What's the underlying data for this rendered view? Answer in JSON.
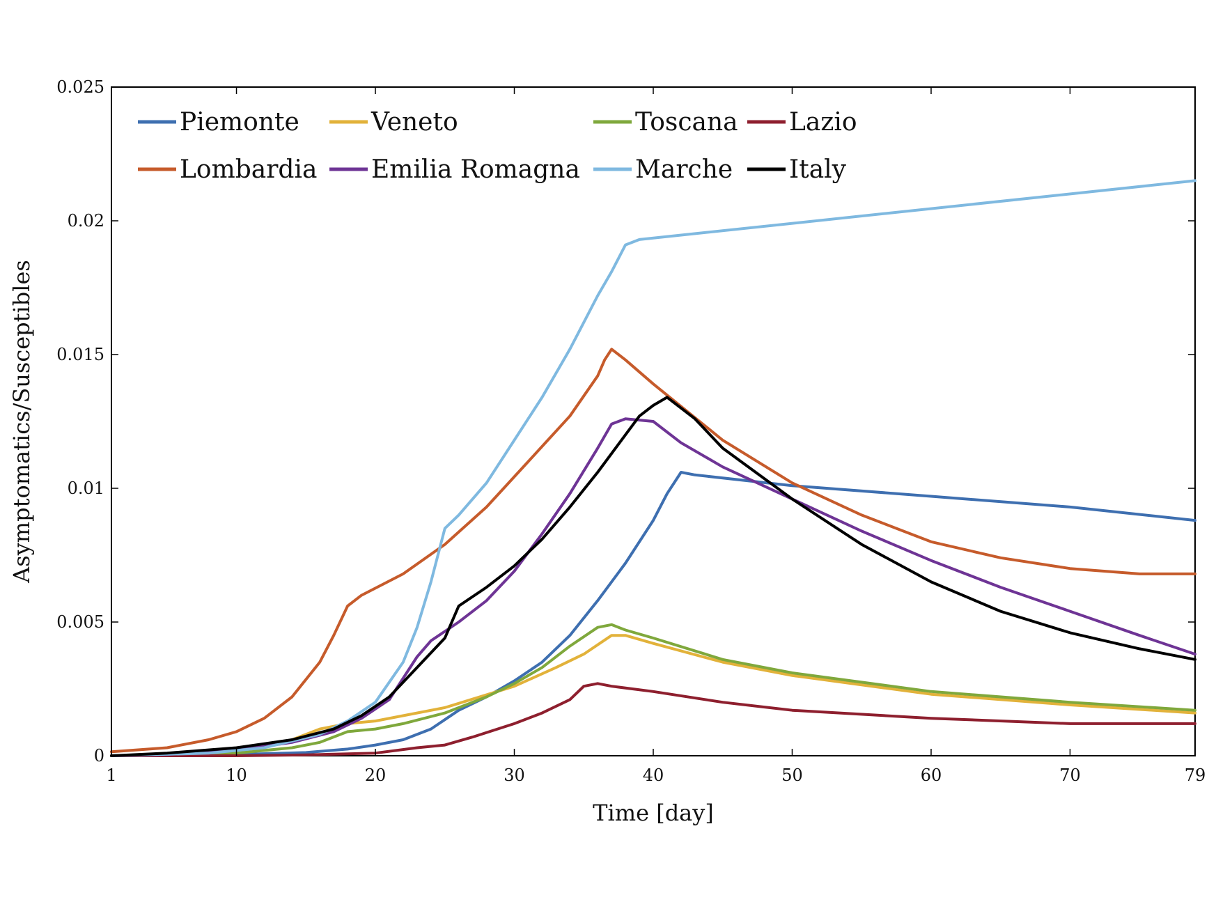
{
  "chart_data": {
    "type": "line",
    "title": "",
    "xlabel": "Time [day]",
    "ylabel": "Asymptomatics/Susceptibles",
    "xlim": [
      1,
      79
    ],
    "ylim": [
      0,
      0.025
    ],
    "xticks": [
      1,
      10,
      20,
      30,
      40,
      50,
      60,
      70,
      79
    ],
    "xtick_labels": [
      "1",
      "10",
      "20",
      "30",
      "40",
      "50",
      "60",
      "70",
      "79"
    ],
    "yticks": [
      0,
      0.005,
      0.01,
      0.015,
      0.02,
      0.025
    ],
    "ytick_labels": [
      "0",
      "0.005",
      "0.01",
      "0.015",
      "0.02",
      "0.025"
    ],
    "grid": false,
    "legend_position": "top-left",
    "series": [
      {
        "name": "Piemonte",
        "color": "#3E6FB0",
        "points": [
          [
            1,
            0
          ],
          [
            10,
            5e-05
          ],
          [
            15,
            0.00012
          ],
          [
            18,
            0.00025
          ],
          [
            20,
            0.0004
          ],
          [
            22,
            0.0006
          ],
          [
            24,
            0.001
          ],
          [
            26,
            0.0017
          ],
          [
            28,
            0.0022
          ],
          [
            30,
            0.0028
          ],
          [
            32,
            0.0035
          ],
          [
            34,
            0.0045
          ],
          [
            36,
            0.0058
          ],
          [
            38,
            0.0072
          ],
          [
            40,
            0.0088
          ],
          [
            41,
            0.0098
          ],
          [
            42,
            0.0106
          ],
          [
            43,
            0.0105
          ],
          [
            50,
            0.0101
          ],
          [
            60,
            0.0097
          ],
          [
            70,
            0.0093
          ],
          [
            79,
            0.0088
          ]
        ]
      },
      {
        "name": "Veneto",
        "color": "#E2B23A",
        "points": [
          [
            1,
            0
          ],
          [
            5,
            0
          ],
          [
            8,
            0.00015
          ],
          [
            10,
            0.0002
          ],
          [
            12,
            0.0003
          ],
          [
            14,
            0.0006
          ],
          [
            16,
            0.001
          ],
          [
            18,
            0.0012
          ],
          [
            20,
            0.0013
          ],
          [
            25,
            0.0018
          ],
          [
            30,
            0.0026
          ],
          [
            33,
            0.0033
          ],
          [
            35,
            0.0038
          ],
          [
            37,
            0.0045
          ],
          [
            38,
            0.0045
          ],
          [
            40,
            0.0042
          ],
          [
            45,
            0.0035
          ],
          [
            50,
            0.003
          ],
          [
            60,
            0.0023
          ],
          [
            70,
            0.0019
          ],
          [
            79,
            0.0016
          ]
        ]
      },
      {
        "name": "Toscana",
        "color": "#7FA83C",
        "points": [
          [
            1,
            0
          ],
          [
            10,
            0.0001
          ],
          [
            14,
            0.0003
          ],
          [
            16,
            0.0005
          ],
          [
            18,
            0.0009
          ],
          [
            20,
            0.001
          ],
          [
            22,
            0.0012
          ],
          [
            25,
            0.0016
          ],
          [
            28,
            0.0022
          ],
          [
            30,
            0.0027
          ],
          [
            32,
            0.0033
          ],
          [
            34,
            0.0041
          ],
          [
            36,
            0.0048
          ],
          [
            37,
            0.0049
          ],
          [
            38,
            0.0047
          ],
          [
            40,
            0.0044
          ],
          [
            45,
            0.0036
          ],
          [
            50,
            0.0031
          ],
          [
            60,
            0.0024
          ],
          [
            70,
            0.002
          ],
          [
            79,
            0.0017
          ]
        ]
      },
      {
        "name": "Lazio",
        "color": "#8E1F2E",
        "points": [
          [
            1,
            0
          ],
          [
            10,
            0
          ],
          [
            15,
            3e-05
          ],
          [
            20,
            0.0001
          ],
          [
            23,
            0.0003
          ],
          [
            25,
            0.0004
          ],
          [
            27,
            0.0007
          ],
          [
            30,
            0.0012
          ],
          [
            32,
            0.0016
          ],
          [
            34,
            0.0021
          ],
          [
            35,
            0.0026
          ],
          [
            36,
            0.0027
          ],
          [
            37,
            0.0026
          ],
          [
            40,
            0.0024
          ],
          [
            45,
            0.002
          ],
          [
            50,
            0.0017
          ],
          [
            60,
            0.0014
          ],
          [
            70,
            0.0012
          ],
          [
            79,
            0.0012
          ]
        ]
      },
      {
        "name": "Lombardia",
        "color": "#C65B2B",
        "points": [
          [
            1,
            0.00015
          ],
          [
            5,
            0.0003
          ],
          [
            8,
            0.0006
          ],
          [
            10,
            0.0009
          ],
          [
            12,
            0.0014
          ],
          [
            14,
            0.0022
          ],
          [
            16,
            0.0035
          ],
          [
            17,
            0.0045
          ],
          [
            18,
            0.0056
          ],
          [
            19,
            0.006
          ],
          [
            22,
            0.0068
          ],
          [
            25,
            0.0079
          ],
          [
            28,
            0.0093
          ],
          [
            31,
            0.011
          ],
          [
            34,
            0.0127
          ],
          [
            36,
            0.0142
          ],
          [
            36.5,
            0.0148
          ],
          [
            37,
            0.0152
          ],
          [
            38,
            0.0148
          ],
          [
            40,
            0.0139
          ],
          [
            45,
            0.0118
          ],
          [
            50,
            0.0102
          ],
          [
            55,
            0.009
          ],
          [
            60,
            0.008
          ],
          [
            65,
            0.0074
          ],
          [
            70,
            0.007
          ],
          [
            75,
            0.0068
          ],
          [
            79,
            0.0068
          ]
        ]
      },
      {
        "name": "Emilia Romagna",
        "color": "#6E3495",
        "points": [
          [
            1,
            0
          ],
          [
            5,
            5e-05
          ],
          [
            10,
            0.0002
          ],
          [
            14,
            0.0005
          ],
          [
            17,
            0.0009
          ],
          [
            19,
            0.0014
          ],
          [
            21,
            0.0021
          ],
          [
            23,
            0.0037
          ],
          [
            24,
            0.0043
          ],
          [
            26,
            0.005
          ],
          [
            28,
            0.0058
          ],
          [
            30,
            0.0069
          ],
          [
            32,
            0.0083
          ],
          [
            34,
            0.0098
          ],
          [
            36,
            0.0115
          ],
          [
            37,
            0.0124
          ],
          [
            38,
            0.0126
          ],
          [
            40,
            0.0125
          ],
          [
            42,
            0.0117
          ],
          [
            45,
            0.0108
          ],
          [
            50,
            0.0096
          ],
          [
            55,
            0.0084
          ],
          [
            60,
            0.0073
          ],
          [
            65,
            0.0063
          ],
          [
            70,
            0.0054
          ],
          [
            75,
            0.0045
          ],
          [
            79,
            0.0038
          ]
        ]
      },
      {
        "name": "Marche",
        "color": "#7FB9E0",
        "points": [
          [
            1,
            0
          ],
          [
            8,
            0.0001
          ],
          [
            12,
            0.0003
          ],
          [
            16,
            0.0008
          ],
          [
            18,
            0.0013
          ],
          [
            20,
            0.002
          ],
          [
            22,
            0.0035
          ],
          [
            23,
            0.0048
          ],
          [
            24,
            0.0065
          ],
          [
            25,
            0.0085
          ],
          [
            26,
            0.009
          ],
          [
            28,
            0.0102
          ],
          [
            30,
            0.0118
          ],
          [
            32,
            0.0134
          ],
          [
            34,
            0.0152
          ],
          [
            36,
            0.0172
          ],
          [
            37,
            0.0181
          ],
          [
            38,
            0.0191
          ],
          [
            39,
            0.0193
          ],
          [
            79,
            0.0215
          ]
        ]
      },
      {
        "name": "Italy",
        "color": "#000000",
        "points": [
          [
            1,
            0
          ],
          [
            5,
            0.0001
          ],
          [
            10,
            0.0003
          ],
          [
            14,
            0.0006
          ],
          [
            17,
            0.001
          ],
          [
            19,
            0.0015
          ],
          [
            21,
            0.0022
          ],
          [
            23,
            0.0033
          ],
          [
            25,
            0.0044
          ],
          [
            26,
            0.0056
          ],
          [
            28,
            0.0063
          ],
          [
            30,
            0.0071
          ],
          [
            32,
            0.0081
          ],
          [
            34,
            0.0093
          ],
          [
            36,
            0.0106
          ],
          [
            38,
            0.012
          ],
          [
            39,
            0.0127
          ],
          [
            40,
            0.0131
          ],
          [
            41,
            0.0134
          ],
          [
            43,
            0.0126
          ],
          [
            45,
            0.0115
          ],
          [
            50,
            0.0096
          ],
          [
            55,
            0.0079
          ],
          [
            60,
            0.0065
          ],
          [
            65,
            0.0054
          ],
          [
            70,
            0.0046
          ],
          [
            75,
            0.004
          ],
          [
            79,
            0.0036
          ]
        ]
      }
    ]
  }
}
